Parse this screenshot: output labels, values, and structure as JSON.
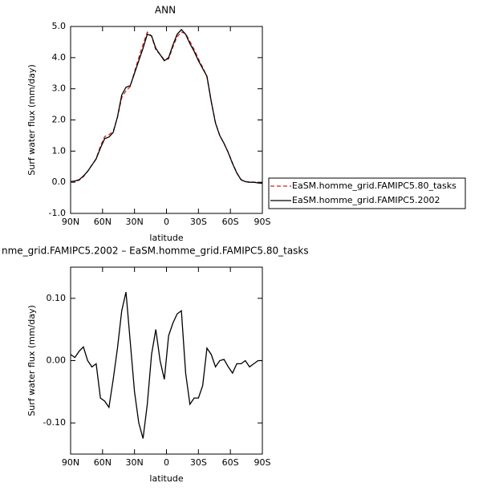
{
  "chart_data": [
    {
      "type": "line",
      "title": "ANN",
      "x_label": "latitude",
      "y_label": "Surf water flux (mm/day)",
      "x": [
        90,
        86,
        82,
        78,
        74,
        70,
        66,
        62,
        58,
        54,
        50,
        46,
        42,
        38,
        34,
        30,
        26,
        22,
        18,
        14,
        10,
        6,
        2,
        -2,
        -6,
        -10,
        -14,
        -18,
        -22,
        -26,
        -30,
        -34,
        -38,
        -42,
        -46,
        -50,
        -54,
        -58,
        -62,
        -66,
        -70,
        -74,
        -78,
        -82,
        -86,
        -90
      ],
      "series": [
        {
          "name": "EaSM.homme_grid.FAMIPC5.80_tasks",
          "color": "#d62020",
          "linestyle": "dashed",
          "values": [
            0.01,
            0.035,
            0.065,
            0.178,
            0.35,
            0.56,
            0.755,
            1.16,
            1.465,
            1.525,
            1.63,
            2.08,
            2.72,
            2.94,
            3.07,
            3.55,
            4.0,
            4.425,
            4.82,
            4.69,
            4.25,
            4.1,
            3.93,
            3.96,
            4.34,
            4.675,
            4.82,
            4.77,
            4.52,
            4.26,
            3.96,
            3.69,
            3.38,
            2.59,
            1.91,
            1.5,
            1.248,
            0.96,
            0.62,
            0.305,
            0.085,
            0.02,
            0.01,
            0.005,
            -0.02,
            -0.03
          ]
        },
        {
          "name": "EaSM.homme_grid.FAMIPC5.2002",
          "color": "#000000",
          "linestyle": "solid",
          "values": [
            0.02,
            0.04,
            0.08,
            0.2,
            0.35,
            0.55,
            0.75,
            1.1,
            1.4,
            1.45,
            1.6,
            2.1,
            2.8,
            3.05,
            3.1,
            3.5,
            3.9,
            4.3,
            4.75,
            4.7,
            4.3,
            4.1,
            3.9,
            4.0,
            4.4,
            4.75,
            4.9,
            4.75,
            4.45,
            4.2,
            3.9,
            3.65,
            3.4,
            2.6,
            1.9,
            1.5,
            1.25,
            0.95,
            0.6,
            0.3,
            0.08,
            0.02,
            0.0,
            0.0,
            -0.02,
            -0.03
          ]
        }
      ],
      "xlim": [
        90,
        -90
      ],
      "xticks": [
        {
          "value": 90,
          "label": "90N"
        },
        {
          "value": 60,
          "label": "60N"
        },
        {
          "value": 30,
          "label": "30N"
        },
        0,
        {
          "value": -30,
          "label": "30S"
        },
        {
          "value": -60,
          "label": "60S"
        },
        {
          "value": -90,
          "label": "90S"
        }
      ],
      "ylim": [
        -1,
        5
      ],
      "yticks": [
        {
          "value": -1,
          "label": "-1.0"
        },
        {
          "value": 0,
          "label": "0.0"
        },
        {
          "value": 1,
          "label": "1.0"
        },
        {
          "value": 2,
          "label": "2.0"
        },
        {
          "value": 3,
          "label": "3.0"
        },
        {
          "value": 4,
          "label": "4.0"
        },
        {
          "value": 5,
          "label": "5.0"
        }
      ],
      "legend": "outside right"
    },
    {
      "type": "line",
      "title": "nme_grid.FAMIPC5.2002 – EaSM.homme_grid.FAMIPC5.80_tasks",
      "x_label": "latitude",
      "y_label": "Surf water flux (mm/day)",
      "x": [
        90,
        86,
        82,
        78,
        74,
        70,
        66,
        62,
        58,
        54,
        50,
        46,
        42,
        38,
        34,
        30,
        26,
        22,
        18,
        14,
        10,
        6,
        2,
        -2,
        -6,
        -10,
        -14,
        -18,
        -22,
        -26,
        -30,
        -34,
        -38,
        -42,
        -46,
        -50,
        -54,
        -58,
        -62,
        -66,
        -70,
        -74,
        -78,
        -82,
        -86,
        -90
      ],
      "color": "#000000",
      "values": [
        0.01,
        0.005,
        0.015,
        0.022,
        0.0,
        -0.01,
        -0.005,
        -0.06,
        -0.065,
        -0.075,
        -0.03,
        0.02,
        0.08,
        0.11,
        0.03,
        -0.05,
        -0.1,
        -0.125,
        -0.07,
        0.01,
        0.05,
        0.0,
        -0.03,
        0.04,
        0.06,
        0.075,
        0.08,
        -0.02,
        -0.07,
        -0.06,
        -0.06,
        -0.04,
        0.02,
        0.01,
        -0.01,
        0.0,
        0.002,
        -0.01,
        -0.02,
        -0.005,
        -0.005,
        0.0,
        -0.01,
        -0.005,
        0.0,
        0.0
      ],
      "xlim": [
        90,
        -90
      ],
      "xticks": [
        {
          "value": 90,
          "label": "90N"
        },
        {
          "value": 60,
          "label": "60N"
        },
        {
          "value": 30,
          "label": "30N"
        },
        0,
        {
          "value": -30,
          "label": "30S"
        },
        {
          "value": -60,
          "label": "60S"
        },
        {
          "value": -90,
          "label": "90S"
        }
      ],
      "ylim": [
        -0.15,
        0.15
      ],
      "yticks": [
        {
          "value": -0.1,
          "label": "-0.10"
        },
        {
          "value": 0,
          "label": "0.00"
        },
        {
          "value": 0.1,
          "label": "0.10"
        }
      ]
    }
  ]
}
